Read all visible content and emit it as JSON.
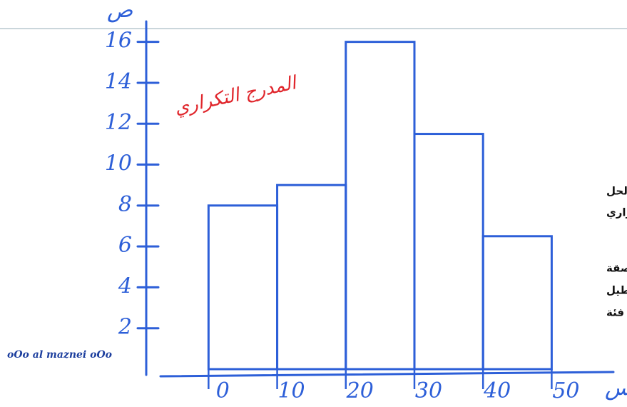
{
  "chart_data": {
    "type": "histogram",
    "title": "المدرج التكراري",
    "y_label": "ص",
    "x_label": "س",
    "bins": [
      0,
      10,
      20,
      30,
      40,
      50
    ],
    "values": [
      8,
      9,
      16,
      11.5,
      6.5
    ],
    "color": "#2d5fd8",
    "xlim": [
      -7,
      59
    ],
    "ylim": [
      0,
      17
    ],
    "xticks": [
      0,
      10,
      20,
      30,
      40,
      50
    ],
    "yticks": [
      2,
      4,
      6,
      8,
      10,
      12,
      14,
      16
    ],
    "annotations": [
      "هذا هو الحل",
      "للمدرج التكراري",
      "تكوت مستطيلات متلاصقة",
      "جنب بعض وكل مستطيل",
      "يمثل فئة"
    ],
    "watermark": "oOo al maznei oOo"
  }
}
